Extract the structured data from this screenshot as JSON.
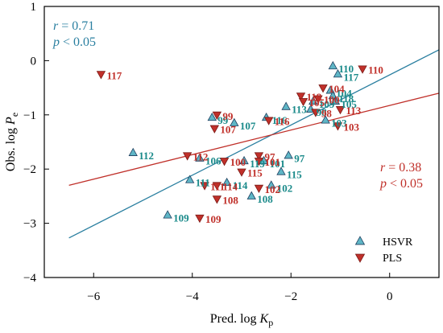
{
  "chart_data": {
    "type": "scatter",
    "xlabel": "Pred. log K_p",
    "ylabel": "Obs. log P_e",
    "xlim": [
      -7,
      1
    ],
    "ylim": [
      -4,
      1
    ],
    "x_ticks": [
      -6,
      -4,
      -2,
      0
    ],
    "y_ticks": [
      1,
      0,
      -1,
      -2,
      -3,
      -4
    ],
    "grid": false,
    "legend_position": "bottom-right",
    "colors": {
      "HSVR_marker": "#5fb6c6",
      "HSVR_text": "#1a8a8a",
      "HSVR_line": "#2a7fa0",
      "PLS_marker": "#c0302a",
      "PLS_text": "#c0302a",
      "PLS_line": "#c0302a"
    },
    "series": [
      {
        "name": "HSVR",
        "marker": "triangle-up",
        "stats": {
          "r": "0.71",
          "p": "0.05"
        },
        "fit_line": {
          "x": [
            -6.5,
            1.0
          ],
          "y": [
            -3.27,
            0.2
          ]
        },
        "points": [
          {
            "label": "110",
            "x": -1.15,
            "y": -0.1
          },
          {
            "label": "117",
            "x": -1.05,
            "y": -0.25
          },
          {
            "label": "104",
            "x": -1.2,
            "y": -0.55
          },
          {
            "label": "118",
            "x": -1.15,
            "y": -0.65
          },
          {
            "label": "105",
            "x": -1.1,
            "y": -0.75
          },
          {
            "label": "109",
            "x": -1.55,
            "y": -0.75
          },
          {
            "label": "98",
            "x": -1.6,
            "y": -0.9
          },
          {
            "label": "113",
            "x": -2.1,
            "y": -0.85
          },
          {
            "label": "116",
            "x": -2.5,
            "y": -1.05
          },
          {
            "label": "103",
            "x": -1.3,
            "y": -1.1
          },
          {
            "label": "99",
            "x": -3.6,
            "y": -1.05
          },
          {
            "label": "107",
            "x": -3.15,
            "y": -1.15
          },
          {
            "label": "112",
            "x": -5.2,
            "y": -1.7
          },
          {
            "label": "97",
            "x": -2.05,
            "y": -1.75
          },
          {
            "label": "106",
            "x": -3.85,
            "y": -1.8
          },
          {
            "label": "119",
            "x": -2.95,
            "y": -1.85
          },
          {
            "label": "101",
            "x": -2.55,
            "y": -1.85
          },
          {
            "label": "115",
            "x": -2.2,
            "y": -2.05
          },
          {
            "label": "111",
            "x": -4.05,
            "y": -2.2
          },
          {
            "label": "114",
            "x": -3.3,
            "y": -2.25
          },
          {
            "label": "102",
            "x": -2.4,
            "y": -2.3
          },
          {
            "label": "108",
            "x": -2.8,
            "y": -2.5
          },
          {
            "label": "109",
            "x": -4.5,
            "y": -2.85
          }
        ]
      },
      {
        "name": "PLS",
        "marker": "triangle-down",
        "stats": {
          "r": "0.38",
          "p": "0.05"
        },
        "fit_line": {
          "x": [
            -6.5,
            1.0
          ],
          "y": [
            -2.3,
            -0.6
          ]
        },
        "points": [
          {
            "label": "117",
            "x": -5.85,
            "y": -0.25
          },
          {
            "label": "110",
            "x": -0.55,
            "y": -0.15
          },
          {
            "label": "118",
            "x": -1.8,
            "y": -0.65
          },
          {
            "label": "104",
            "x": -1.35,
            "y": -0.5
          },
          {
            "label": "105",
            "x": -1.75,
            "y": -0.75
          },
          {
            "label": "100",
            "x": -1.45,
            "y": -0.7
          },
          {
            "label": "98",
            "x": -1.5,
            "y": -0.95
          },
          {
            "label": "113",
            "x": -1.0,
            "y": -0.9
          },
          {
            "label": "116",
            "x": -2.45,
            "y": -1.1
          },
          {
            "label": "99",
            "x": -3.5,
            "y": -1.0
          },
          {
            "label": "107",
            "x": -3.55,
            "y": -1.25
          },
          {
            "label": "103",
            "x": -1.05,
            "y": -1.2
          },
          {
            "label": "112",
            "x": -4.1,
            "y": -1.75
          },
          {
            "label": "97",
            "x": -2.65,
            "y": -1.75
          },
          {
            "label": "101",
            "x": -2.65,
            "y": -1.85
          },
          {
            "label": "100",
            "x": -3.35,
            "y": -1.85
          },
          {
            "label": "115",
            "x": -3.0,
            "y": -2.05
          },
          {
            "label": "111",
            "x": -3.75,
            "y": -2.3
          },
          {
            "label": "114",
            "x": -3.5,
            "y": -2.3
          },
          {
            "label": "102",
            "x": -2.65,
            "y": -2.35
          },
          {
            "label": "108",
            "x": -3.5,
            "y": -2.55
          },
          {
            "label": "109",
            "x": -3.85,
            "y": -2.9
          }
        ]
      }
    ]
  }
}
